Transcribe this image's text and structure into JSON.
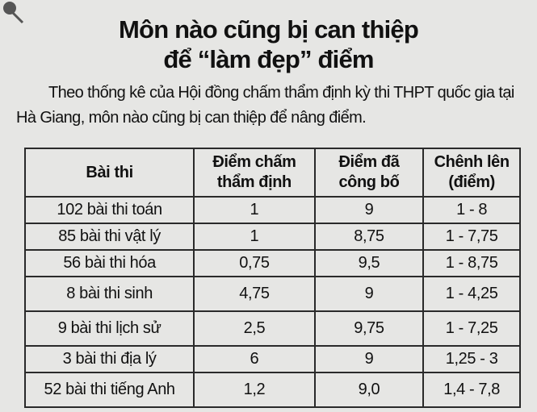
{
  "header": {
    "title": [
      "Môn nào cũng bị can thiệp",
      "để “làm đẹp” điểm"
    ],
    "description": "Theo thống kê của Hội đồng chấm thẩm định kỳ thi THPT quốc gia tại Hà Giang, môn nào cũng bị can thiệp để nâng điểm."
  },
  "table": {
    "columns": [
      "Bài thi",
      "Điểm chấm thẩm định",
      "Điểm đã công bố",
      "Chênh lên (điểm)"
    ],
    "rows": [
      [
        "102 bài thi toán",
        "1",
        "9",
        "1 - 8"
      ],
      [
        "85 bài thi vật lý",
        "1",
        "8,75",
        "1 - 7,75"
      ],
      [
        "56 bài thi hóa",
        "0,75",
        "9,5",
        "1 - 8,75"
      ],
      [
        "8 bài thi sinh",
        "4,75",
        "9",
        "1 - 4,25"
      ],
      [
        "9 bài thi lịch sử",
        "2,5",
        "9,75",
        "1 - 7,25"
      ],
      [
        "3 bài thi địa lý",
        "6",
        "9",
        "1,25 - 3"
      ],
      [
        "52 bài thi tiếng Anh",
        "1,2",
        "9,0",
        "1,4 - 7,8"
      ]
    ]
  }
}
